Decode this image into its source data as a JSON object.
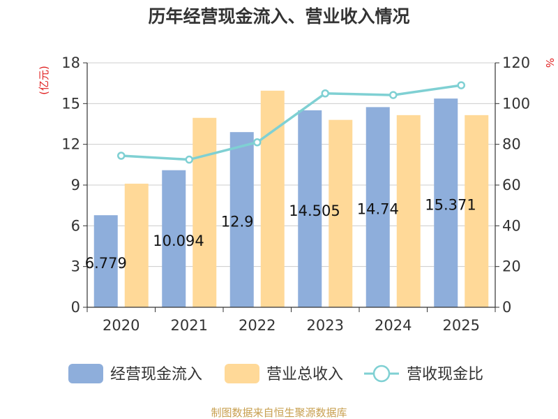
{
  "chart_data": {
    "type": "bar",
    "title": "历年经营现金流入、营业收入情况",
    "categories": [
      "2020",
      "2021",
      "2022",
      "2023",
      "2024",
      "2025"
    ],
    "left_axis": {
      "label": "(亿元)",
      "ylim": [
        0,
        18
      ],
      "ticks": [
        0,
        3,
        6,
        9,
        12,
        15,
        18
      ]
    },
    "right_axis": {
      "label": "%",
      "ylim": [
        0,
        120
      ],
      "ticks": [
        0,
        20,
        40,
        60,
        80,
        100,
        120
      ]
    },
    "series": [
      {
        "name": "经营现金流入",
        "kind": "bar",
        "axis": "left",
        "color": "#8eaedb",
        "values": [
          6.779,
          10.094,
          12.9,
          14.505,
          14.74,
          15.371
        ],
        "labels": [
          "6.779",
          "10.094",
          "12.9",
          "14.505",
          "14.74",
          "15.371"
        ]
      },
      {
        "name": "营业总收入",
        "kind": "bar",
        "axis": "left",
        "color": "#ffd998",
        "values": [
          9.1,
          13.95,
          15.95,
          13.8,
          14.15,
          14.15
        ]
      },
      {
        "name": "营收现金比",
        "kind": "line",
        "axis": "right",
        "color": "#7fd0d3",
        "values": [
          74.4,
          72.5,
          81.0,
          105.0,
          104.2,
          109.0
        ]
      }
    ],
    "grid": true,
    "legend_position": "bottom"
  },
  "footer": {
    "source": "制图数据来自恒生聚源数据库"
  }
}
